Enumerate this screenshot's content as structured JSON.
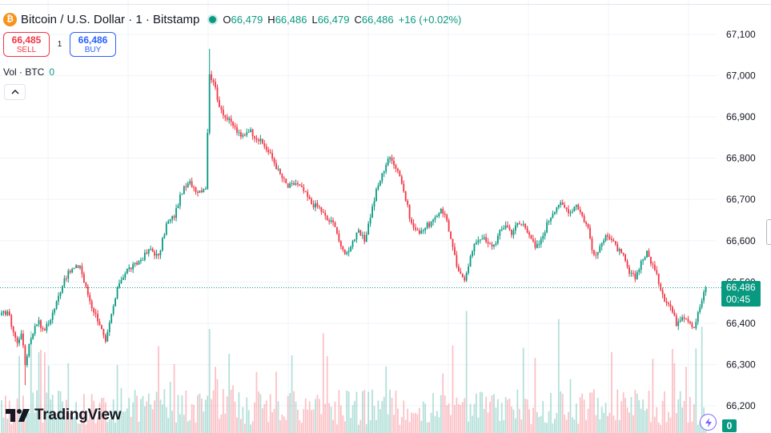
{
  "header": {
    "symbol_icon": "bitcoin-icon",
    "title": "Bitcoin / U.S. Dollar · 1 · Bitstamp",
    "ohlc": {
      "o_label": "O",
      "o_value": "66,479",
      "h_label": "H",
      "h_value": "66,486",
      "l_label": "L",
      "l_value": "66,479",
      "c_label": "C",
      "c_value": "66,486",
      "change": "+16 (+0.02%)"
    }
  },
  "trade": {
    "sell_price": "66,485",
    "sell_label": "SELL",
    "spread": "1",
    "buy_price": "66,486",
    "buy_label": "BUY"
  },
  "volume_legend": {
    "label": "Vol · BTC",
    "value": "0"
  },
  "collapse_icon": "chevron-up-icon",
  "price_tag": {
    "price": "66,486",
    "countdown": "00:45"
  },
  "volume_tag": "0",
  "branding": "TradingView",
  "colors": {
    "up": "#089981",
    "down": "#f23645",
    "sell": "#f23645",
    "buy": "#2962ff",
    "accent": "#7b61ff"
  },
  "chart_data": {
    "type": "candlestick",
    "interval": "1",
    "y_axis": {
      "ticks": [
        "67,100",
        "67,000",
        "66,900",
        "66,800",
        "66,700",
        "66,600",
        "66,500",
        "66,400",
        "66,300",
        "66,200"
      ],
      "tick_values": [
        67100,
        67000,
        66900,
        66800,
        66700,
        66600,
        66500,
        66400,
        66300,
        66200
      ],
      "range": [
        66150,
        67190
      ]
    },
    "last_price": 66486,
    "grid": true,
    "anchors": [
      [
        0,
        66420
      ],
      [
        3,
        66430
      ],
      [
        6,
        66380
      ],
      [
        8,
        66350
      ],
      [
        10,
        66380
      ],
      [
        12,
        66300
      ],
      [
        14,
        66350
      ],
      [
        16,
        66380
      ],
      [
        19,
        66410
      ],
      [
        21,
        66380
      ],
      [
        24,
        66400
      ],
      [
        28,
        66450
      ],
      [
        32,
        66510
      ],
      [
        36,
        66530
      ],
      [
        40,
        66540
      ],
      [
        42,
        66500
      ],
      [
        46,
        66440
      ],
      [
        50,
        66400
      ],
      [
        53,
        66350
      ],
      [
        56,
        66420
      ],
      [
        60,
        66500
      ],
      [
        64,
        66530
      ],
      [
        68,
        66540
      ],
      [
        72,
        66560
      ],
      [
        76,
        66580
      ],
      [
        80,
        66560
      ],
      [
        84,
        66640
      ],
      [
        88,
        66660
      ],
      [
        92,
        66720
      ],
      [
        96,
        66740
      ],
      [
        100,
        66720
      ],
      [
        104,
        66730
      ],
      [
        106,
        67000
      ],
      [
        108,
        66990
      ],
      [
        110,
        66940
      ],
      [
        114,
        66900
      ],
      [
        118,
        66880
      ],
      [
        122,
        66850
      ],
      [
        126,
        66870
      ],
      [
        130,
        66850
      ],
      [
        134,
        66830
      ],
      [
        138,
        66800
      ],
      [
        142,
        66760
      ],
      [
        146,
        66730
      ],
      [
        150,
        66740
      ],
      [
        154,
        66720
      ],
      [
        158,
        66690
      ],
      [
        162,
        66680
      ],
      [
        166,
        66650
      ],
      [
        170,
        66640
      ],
      [
        173,
        66580
      ],
      [
        176,
        66570
      ],
      [
        179,
        66600
      ],
      [
        182,
        66620
      ],
      [
        185,
        66600
      ],
      [
        188,
        66660
      ],
      [
        191,
        66720
      ],
      [
        194,
        66760
      ],
      [
        197,
        66800
      ],
      [
        200,
        66790
      ],
      [
        203,
        66760
      ],
      [
        206,
        66700
      ],
      [
        209,
        66640
      ],
      [
        212,
        66620
      ],
      [
        215,
        66630
      ],
      [
        218,
        66640
      ],
      [
        221,
        66650
      ],
      [
        224,
        66680
      ],
      [
        227,
        66650
      ],
      [
        230,
        66580
      ],
      [
        233,
        66520
      ],
      [
        236,
        66510
      ],
      [
        239,
        66560
      ],
      [
        242,
        66600
      ],
      [
        245,
        66610
      ],
      [
        248,
        66590
      ],
      [
        251,
        66590
      ],
      [
        254,
        66620
      ],
      [
        257,
        66640
      ],
      [
        260,
        66620
      ],
      [
        263,
        66640
      ],
      [
        266,
        66640
      ],
      [
        269,
        66620
      ],
      [
        272,
        66580
      ],
      [
        275,
        66600
      ],
      [
        278,
        66640
      ],
      [
        281,
        66670
      ],
      [
        284,
        66690
      ],
      [
        287,
        66680
      ],
      [
        290,
        66670
      ],
      [
        293,
        66690
      ],
      [
        296,
        66660
      ],
      [
        299,
        66630
      ],
      [
        302,
        66560
      ],
      [
        305,
        66580
      ],
      [
        308,
        66620
      ],
      [
        311,
        66600
      ],
      [
        314,
        66580
      ],
      [
        317,
        66560
      ],
      [
        320,
        66520
      ],
      [
        323,
        66510
      ],
      [
        326,
        66550
      ],
      [
        329,
        66570
      ],
      [
        332,
        66540
      ],
      [
        335,
        66500
      ],
      [
        338,
        66460
      ],
      [
        341,
        66440
      ],
      [
        344,
        66400
      ],
      [
        347,
        66420
      ],
      [
        350,
        66410
      ],
      [
        353,
        66390
      ],
      [
        356,
        66440
      ],
      [
        359,
        66486
      ]
    ]
  }
}
